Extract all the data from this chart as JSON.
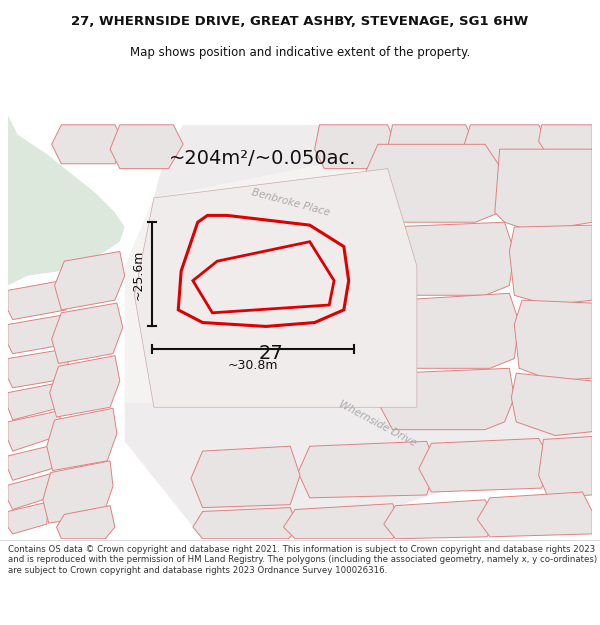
{
  "title_line1": "27, WHERNSIDE DRIVE, GREAT ASHBY, STEVENAGE, SG1 6HW",
  "title_line2": "Map shows position and indicative extent of the property.",
  "area_text": "~204m²/~0.050ac.",
  "dim_width": "~30.8m",
  "dim_height": "~25.6m",
  "label_27": "27",
  "road_label1": "Benbroke Place",
  "road_label2": "Whernside Drive",
  "copyright_text": "Contains OS data © Crown copyright and database right 2021. This information is subject to Crown copyright and database rights 2023 and is reproduced with the permission of HM Land Registry. The polygons (including the associated geometry, namely x, y co-ordinates) are subject to Crown copyright and database rights 2023 Ordnance Survey 100026316.",
  "map_bg": "#ffffff",
  "green_color": "#dce8dc",
  "road_fill": "#e8e0e0",
  "building_fill": "#e8e4e4",
  "building_edge": "#e08080",
  "building_edge_dark": "#c8a0a0",
  "highlight_edge": "#dd0000",
  "highlight_fill": "none",
  "dim_color": "#111111",
  "title_color": "#111111",
  "road_text_color": "#aaaaaa",
  "copyright_color": "#333333"
}
